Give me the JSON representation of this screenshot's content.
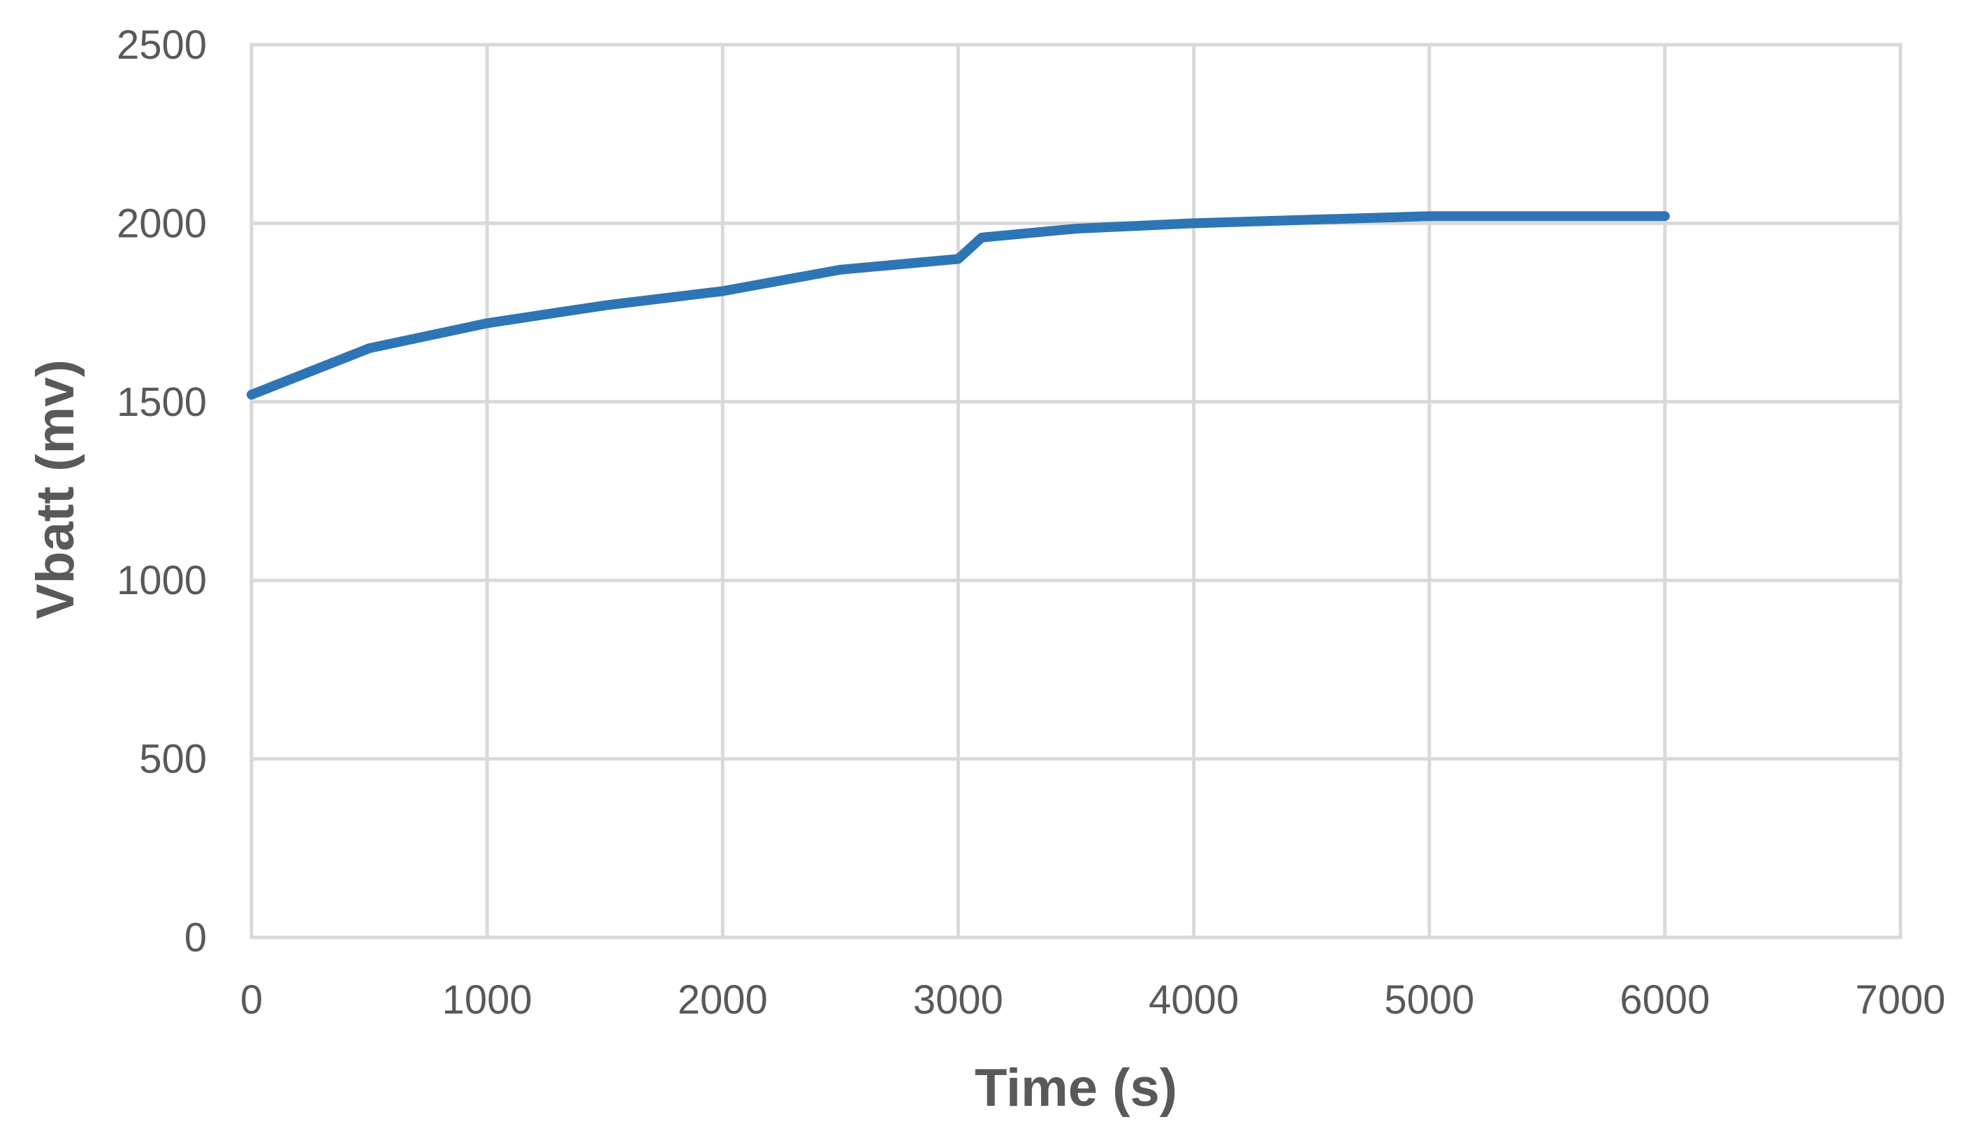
{
  "chart_data": {
    "type": "line",
    "title": "",
    "xlabel": "Time (s)",
    "ylabel": "Vbatt (mv)",
    "xlim": [
      0,
      7000
    ],
    "ylim": [
      0,
      2500
    ],
    "xticks": [
      0,
      1000,
      2000,
      3000,
      4000,
      5000,
      6000,
      7000
    ],
    "yticks": [
      0,
      500,
      1000,
      1500,
      2000,
      2500
    ],
    "grid": true,
    "legend": "none",
    "series": [
      {
        "color": "#2e75b6",
        "x": [
          0,
          500,
          1000,
          1500,
          2000,
          2500,
          3000,
          3100,
          3500,
          4000,
          4500,
          5000,
          5500,
          6000
        ],
        "y": [
          1520,
          1650,
          1720,
          1770,
          1810,
          1870,
          1900,
          1960,
          1985,
          2000,
          2010,
          2020,
          2020,
          2020
        ]
      }
    ]
  }
}
